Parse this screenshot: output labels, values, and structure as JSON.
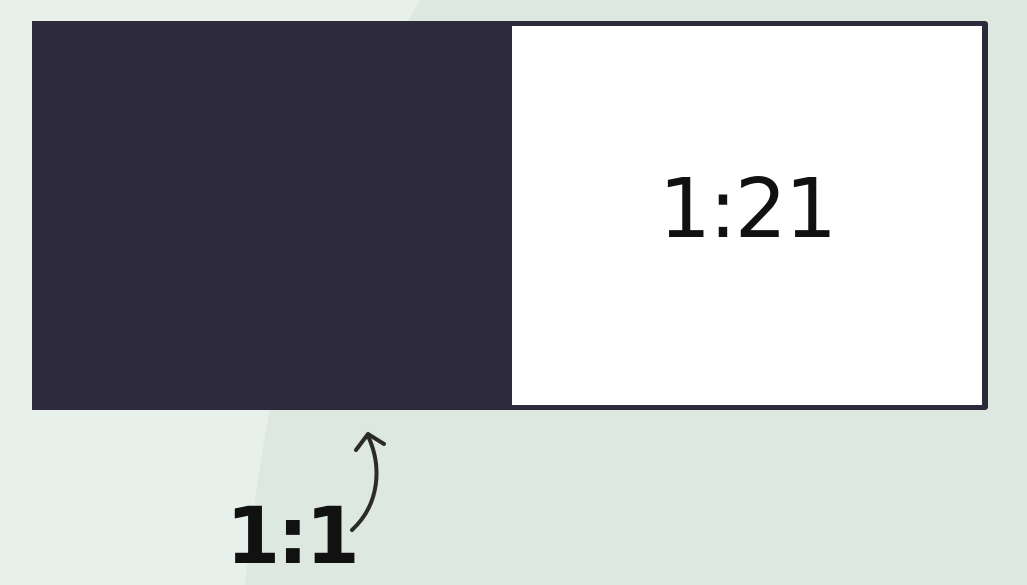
{
  "light_swatch": {
    "ratio": "1:21",
    "color": "#ffffff"
  },
  "dark_swatch": {
    "color": "#2d2a3b"
  },
  "annotation": {
    "ratio": "1:1",
    "icon": "curved-arrow-up-icon"
  },
  "colors": {
    "background": "#dde9e0",
    "background_highlight": "#e7f0ea",
    "text": "#111111",
    "arrow": "#2b2b2b"
  }
}
